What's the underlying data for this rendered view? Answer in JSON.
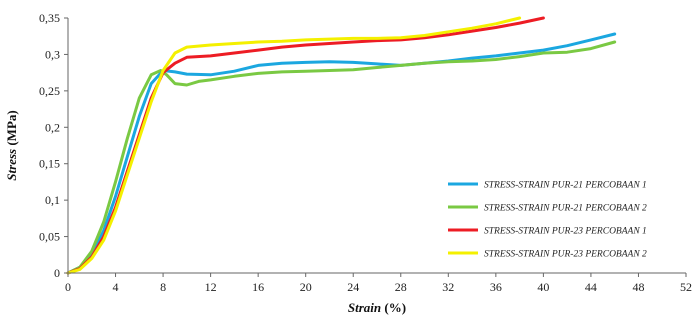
{
  "chart_data": {
    "type": "line",
    "xlabel_italic": "Strain",
    "xlabel_unit": " (%)",
    "ylabel_italic": "Stress",
    "ylabel_unit": " (MPa)",
    "xlim": [
      0,
      52
    ],
    "ylim": [
      0,
      0.35
    ],
    "xticks": [
      0,
      4,
      8,
      12,
      16,
      20,
      24,
      28,
      32,
      36,
      40,
      44,
      48,
      52
    ],
    "xtick_labels": [
      "0",
      "4",
      "8",
      "12",
      "16",
      "20",
      "24",
      "28",
      "32",
      "36",
      "40",
      "44",
      "48",
      "52"
    ],
    "yticks": [
      0,
      0.05,
      0.1,
      0.15,
      0.2,
      0.25,
      0.3,
      0.35
    ],
    "ytick_labels": [
      "0",
      "0,05",
      "0,1",
      "0,15",
      "0,2",
      "0,25",
      "0,3",
      "0,35"
    ],
    "grid": false,
    "legend_position": "right",
    "series": [
      {
        "name": "STRESS-STRAIN PUR-21 PERCOBAAN 1",
        "color": "#1ba7e0",
        "x": [
          0,
          1,
          2,
          3,
          4,
          5,
          6,
          7,
          8,
          9,
          10,
          12,
          14,
          16,
          18,
          20,
          22,
          24,
          26,
          28,
          30,
          32,
          34,
          36,
          38,
          40,
          42,
          44,
          46
        ],
        "y": [
          0,
          0.008,
          0.025,
          0.058,
          0.105,
          0.16,
          0.215,
          0.26,
          0.278,
          0.276,
          0.273,
          0.272,
          0.277,
          0.285,
          0.288,
          0.289,
          0.29,
          0.289,
          0.287,
          0.285,
          0.288,
          0.291,
          0.295,
          0.298,
          0.302,
          0.306,
          0.312,
          0.32,
          0.328
        ]
      },
      {
        "name": "STRESS-STRAIN PUR-21 PERCOBAAN 2",
        "color": "#7ac943",
        "x": [
          0,
          1,
          2,
          3,
          4,
          5,
          6,
          7,
          7.8,
          8.3,
          9,
          10,
          11,
          12,
          14,
          16,
          18,
          20,
          22,
          24,
          26,
          28,
          30,
          32,
          34,
          36,
          38,
          40,
          42,
          44,
          46
        ],
        "y": [
          0,
          0.008,
          0.03,
          0.07,
          0.125,
          0.185,
          0.24,
          0.272,
          0.278,
          0.272,
          0.26,
          0.258,
          0.263,
          0.265,
          0.27,
          0.274,
          0.276,
          0.277,
          0.278,
          0.279,
          0.282,
          0.285,
          0.288,
          0.29,
          0.291,
          0.293,
          0.297,
          0.302,
          0.303,
          0.308,
          0.317
        ]
      },
      {
        "name": "STRESS-STRAIN PUR-23 PERCOBAAN 1",
        "color": "#ed1c24",
        "x": [
          0,
          1,
          2,
          3,
          4,
          5,
          6,
          7,
          8,
          9,
          10,
          12,
          14,
          16,
          18,
          20,
          22,
          24,
          26,
          28,
          30,
          32,
          34,
          36,
          38,
          40
        ],
        "y": [
          0,
          0.006,
          0.022,
          0.05,
          0.09,
          0.14,
          0.19,
          0.24,
          0.275,
          0.288,
          0.296,
          0.298,
          0.302,
          0.306,
          0.31,
          0.313,
          0.315,
          0.317,
          0.319,
          0.32,
          0.323,
          0.327,
          0.332,
          0.337,
          0.343,
          0.35
        ]
      },
      {
        "name": "STRESS-STRAIN PUR-23 PERCOBAAN 2",
        "color": "#f4f000",
        "x": [
          0,
          1,
          2,
          3,
          4,
          5,
          6,
          7,
          8,
          9,
          10,
          12,
          14,
          16,
          18,
          20,
          22,
          24,
          26,
          28,
          30,
          32,
          34,
          36,
          38
        ],
        "y": [
          0,
          0.005,
          0.02,
          0.045,
          0.085,
          0.135,
          0.185,
          0.235,
          0.278,
          0.302,
          0.31,
          0.313,
          0.315,
          0.317,
          0.318,
          0.32,
          0.321,
          0.322,
          0.322,
          0.323,
          0.326,
          0.331,
          0.336,
          0.342,
          0.35
        ]
      }
    ]
  }
}
